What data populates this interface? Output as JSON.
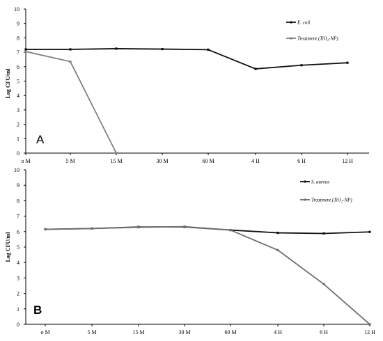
{
  "chart_data": [
    {
      "panel": "A",
      "type": "line",
      "categories": [
        "o M",
        "5 M",
        "15 M",
        "30 M",
        "60 M",
        "4 H",
        "6 H",
        "12 H"
      ],
      "ylabel": "Log CFU/ml",
      "ylim": [
        0,
        10
      ],
      "yticks": [
        "0",
        "1",
        "2",
        "3",
        "4",
        "5",
        "6",
        "7",
        "8",
        "9",
        "10"
      ],
      "grid": false,
      "legend_position": "top-right",
      "series": [
        {
          "name": "E. coli",
          "color": "#111111",
          "values": [
            7.2,
            7.2,
            7.25,
            7.22,
            7.18,
            5.85,
            6.1,
            6.27
          ]
        },
        {
          "name": "Treatment (TiO₂-NP)",
          "color": "#808080",
          "values": [
            7.05,
            6.35,
            0,
            null,
            null,
            null,
            null,
            null
          ]
        }
      ]
    },
    {
      "panel": "B",
      "type": "line",
      "categories": [
        "o M",
        "5 M",
        "15 M",
        "30 M",
        "60 M",
        "4 H",
        "6 H",
        "12 H"
      ],
      "ylabel": "Log CFU/ml",
      "ylim": [
        0,
        10
      ],
      "yticks": [
        "0",
        "1",
        "2",
        "3",
        "4",
        "5",
        "6",
        "7",
        "8",
        "9",
        "10"
      ],
      "grid": false,
      "legend_position": "top-right",
      "series": [
        {
          "name": "S. aureus",
          "color": "#111111",
          "values": [
            6.15,
            6.2,
            6.3,
            6.3,
            6.1,
            5.92,
            5.88,
            5.98
          ]
        },
        {
          "name": "Treatment (TiO₂-NP)",
          "color": "#6e6e6e",
          "values": [
            6.15,
            6.2,
            6.28,
            6.32,
            6.1,
            4.8,
            2.6,
            0
          ]
        }
      ]
    }
  ]
}
